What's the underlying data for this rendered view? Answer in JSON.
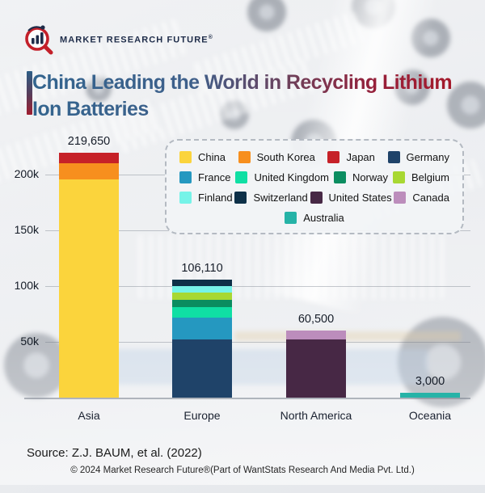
{
  "brand": {
    "name": "MARKET RESEARCH FUTURE",
    "registered_mark": "®"
  },
  "title": {
    "lines": [
      "China Leading the World in Recycling Lithium",
      "Ion Batteries"
    ]
  },
  "chart_data": {
    "type": "bar",
    "stacked": true,
    "title": "China Leading the World in Recycling Lithium Ion Batteries",
    "categories": [
      "Asia",
      "Europe",
      "North America",
      "Oceania"
    ],
    "totals": [
      219650,
      106110,
      60500,
      3000
    ],
    "total_labels": [
      "219,650",
      "106,110",
      "60,500",
      "3,000"
    ],
    "y_ticks": [
      {
        "label": "50k",
        "value": 50000
      },
      {
        "label": "100k",
        "value": 100000
      },
      {
        "label": "150k",
        "value": 150000
      },
      {
        "label": "200k",
        "value": 200000
      }
    ],
    "ylim": [
      0,
      230000
    ],
    "grid": true,
    "legend_position": "top-right-overlay",
    "legend": [
      {
        "label": "China",
        "color": "#FBD43C"
      },
      {
        "label": "South Korea",
        "color": "#F78F1E"
      },
      {
        "label": "Japan",
        "color": "#C62128"
      },
      {
        "label": "Germany",
        "color": "#1F4369"
      },
      {
        "label": "France",
        "color": "#2598C0"
      },
      {
        "label": "United Kingdom",
        "color": "#10DFA4"
      },
      {
        "label": "Norway",
        "color": "#0B8D60"
      },
      {
        "label": "Belgium",
        "color": "#A8D832"
      },
      {
        "label": "Finland",
        "color": "#76F3E8"
      },
      {
        "label": "Switzerland",
        "color": "#0E3048"
      },
      {
        "label": "United States",
        "color": "#472845"
      },
      {
        "label": "Canada",
        "color": "#BC8DBC"
      },
      {
        "label": "Australia",
        "color": "#26B3A7"
      }
    ],
    "stacks": [
      {
        "category": "Asia",
        "segments": [
          {
            "label": "China",
            "value": 196000
          },
          {
            "label": "South Korea",
            "value": 14000
          },
          {
            "label": "Japan",
            "value": 9650
          }
        ]
      },
      {
        "category": "Europe",
        "segments": [
          {
            "label": "Germany",
            "value": 52000
          },
          {
            "label": "France",
            "value": 20000
          },
          {
            "label": "United Kingdom",
            "value": 9000
          },
          {
            "label": "Norway",
            "value": 6500
          },
          {
            "label": "Belgium",
            "value": 6500
          },
          {
            "label": "Finland",
            "value": 6000
          },
          {
            "label": "Switzerland",
            "value": 6110
          }
        ]
      },
      {
        "category": "North America",
        "segments": [
          {
            "label": "United States",
            "value": 52500
          },
          {
            "label": "Canada",
            "value": 8000
          }
        ]
      },
      {
        "category": "Oceania",
        "segments": [
          {
            "label": "Australia",
            "value": 3000
          }
        ]
      }
    ]
  },
  "source": "Source: Z.J. BAUM, et al. (2022)",
  "footer": "© 2024 Market Research Future®(Part of WantStats Research And Media Pvt. Ltd.)"
}
